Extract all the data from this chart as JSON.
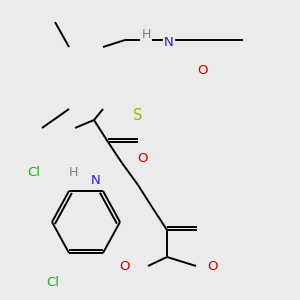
{
  "background_color": "#EBEBEB",
  "fig_width": 3.0,
  "fig_height": 3.0,
  "dpi": 100,
  "line_width": 1.4,
  "font_size": 9.5,
  "colors": {
    "C": "#000000",
    "H": "#808080",
    "N": "#2222CC",
    "O": "#CC0000",
    "S": "#AAAA00",
    "Cl": "#22AA22"
  }
}
